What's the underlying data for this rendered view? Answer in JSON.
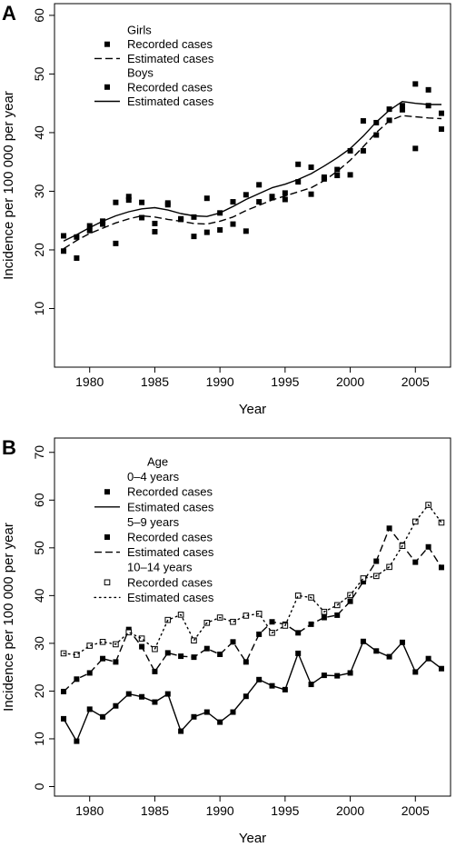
{
  "chart_data": [
    {
      "panel": "A",
      "type": "scatter",
      "xlabel": "Year",
      "ylabel": "Incidence per 100 000 per year",
      "xlim": [
        1977.3,
        2007.7
      ],
      "ylim": [
        0,
        62
      ],
      "xticks": [
        1980,
        1985,
        1990,
        1995,
        2000,
        2005
      ],
      "yticks": [
        10,
        20,
        30,
        40,
        50,
        60
      ],
      "grid": false,
      "legend_position": "top-left",
      "legend": [
        {
          "kind": "header",
          "text": "Girls"
        },
        {
          "kind": "marker",
          "text": "Recorded cases",
          "style": "filled-square"
        },
        {
          "kind": "line",
          "text": "Estimated cases",
          "style": "dashed"
        },
        {
          "kind": "header",
          "text": "Boys"
        },
        {
          "kind": "marker",
          "text": "Recorded cases",
          "style": "filled-square"
        },
        {
          "kind": "line",
          "text": "Estimated cases",
          "style": "solid"
        }
      ],
      "series": [
        {
          "legend_index": 1,
          "kind": "points",
          "style": "filled-square",
          "x": [
            1978,
            1979,
            1980,
            1981,
            1982,
            1983,
            1984,
            1985,
            1986,
            1987,
            1988,
            1989,
            1990,
            1991,
            1992,
            1993,
            1994,
            1995,
            1996,
            1997,
            1998,
            1999,
            2000,
            2001,
            2002,
            2003,
            2004,
            2005,
            2006,
            2007
          ],
          "y": [
            19.8,
            18.6,
            23.3,
            24.4,
            21.1,
            28.5,
            25.5,
            23.1,
            27.7,
            25.2,
            22.3,
            23.0,
            23.4,
            24.4,
            23.2,
            28.2,
            28.9,
            28.6,
            31.6,
            29.5,
            32.1,
            32.7,
            32.8,
            36.9,
            39.6,
            42.1,
            43.9,
            37.3,
            44.6,
            40.6
          ]
        },
        {
          "legend_index": 2,
          "kind": "line",
          "style": "dashed",
          "x": [
            1978,
            1979,
            1980,
            1981,
            1982,
            1983,
            1984,
            1985,
            1986,
            1987,
            1988,
            1989,
            1990,
            1991,
            1992,
            1993,
            1994,
            1995,
            1996,
            1997,
            1998,
            1999,
            2000,
            2001,
            2002,
            2003,
            2004,
            2005,
            2006,
            2007
          ],
          "y": [
            20.2,
            21.6,
            22.8,
            23.7,
            24.6,
            25.3,
            25.8,
            25.6,
            25.2,
            24.9,
            24.5,
            24.4,
            24.9,
            25.6,
            26.7,
            27.6,
            28.5,
            29.2,
            29.9,
            30.6,
            31.8,
            33.4,
            35.3,
            37.6,
            40.0,
            42.0,
            42.9,
            42.7,
            42.5,
            42.4
          ]
        },
        {
          "legend_index": 4,
          "kind": "points",
          "style": "filled-square",
          "x": [
            1978,
            1979,
            1980,
            1981,
            1982,
            1983,
            1984,
            1985,
            1986,
            1987,
            1988,
            1989,
            1990,
            1991,
            1992,
            1993,
            1994,
            1995,
            1996,
            1997,
            1998,
            1999,
            2000,
            2001,
            2002,
            2003,
            2004,
            2005,
            2006,
            2007
          ],
          "y": [
            22.4,
            22.2,
            24.1,
            24.9,
            28.1,
            29.1,
            28.1,
            24.5,
            28.0,
            25.3,
            25.6,
            28.8,
            26.3,
            28.2,
            29.4,
            31.1,
            29.1,
            29.7,
            34.6,
            34.1,
            32.4,
            33.7,
            36.9,
            42.0,
            41.7,
            44.0,
            44.6,
            48.3,
            47.3,
            43.3
          ]
        },
        {
          "legend_index": 5,
          "kind": "line",
          "style": "solid",
          "x": [
            1978,
            1979,
            1980,
            1981,
            1982,
            1983,
            1984,
            1985,
            1986,
            1987,
            1988,
            1989,
            1990,
            1991,
            1992,
            1993,
            1994,
            1995,
            1996,
            1997,
            1998,
            1999,
            2000,
            2001,
            2002,
            2003,
            2004,
            2005,
            2006,
            2007
          ],
          "y": [
            21.5,
            22.6,
            23.8,
            24.9,
            25.8,
            26.5,
            27.0,
            27.2,
            26.8,
            26.2,
            25.8,
            25.7,
            26.3,
            27.4,
            28.6,
            29.6,
            30.6,
            31.2,
            32.0,
            33.0,
            34.3,
            35.7,
            37.3,
            39.4,
            41.8,
            43.8,
            45.3,
            45.0,
            44.8,
            44.8
          ]
        }
      ]
    },
    {
      "panel": "B",
      "type": "scatter",
      "xlabel": "Year",
      "ylabel": "Incidence per 100 000 per year",
      "xlim": [
        1977.3,
        2007.7
      ],
      "ylim": [
        -2,
        73
      ],
      "xticks": [
        1980,
        1985,
        1990,
        1995,
        2000,
        2005
      ],
      "yticks": [
        0,
        10,
        20,
        30,
        40,
        50,
        60,
        70
      ],
      "grid": false,
      "legend_position": "top-left",
      "legend": [
        {
          "kind": "title",
          "text": "Age"
        },
        {
          "kind": "header",
          "text": "0–4 years"
        },
        {
          "kind": "marker",
          "text": "Recorded cases",
          "style": "filled-square"
        },
        {
          "kind": "line",
          "text": "Estimated cases",
          "style": "solid"
        },
        {
          "kind": "header",
          "text": "5–9 years"
        },
        {
          "kind": "marker",
          "text": "Recorded cases",
          "style": "filled-square"
        },
        {
          "kind": "line",
          "text": "Estimated cases",
          "style": "dashed"
        },
        {
          "kind": "header",
          "text": "10–14 years"
        },
        {
          "kind": "marker",
          "text": "Recorded cases",
          "style": "open-square"
        },
        {
          "kind": "line",
          "text": "Estimated cases",
          "style": "dotted"
        }
      ],
      "series": [
        {
          "legend_index": 2,
          "kind": "points",
          "style": "filled-square",
          "x": [
            1978,
            1979,
            1980,
            1981,
            1982,
            1983,
            1984,
            1985,
            1986,
            1987,
            1988,
            1989,
            1990,
            1991,
            1992,
            1993,
            1994,
            1995,
            1996,
            1997,
            1998,
            1999,
            2000,
            2001,
            2002,
            2003,
            2004,
            2005,
            2006,
            2007
          ],
          "y": [
            14.2,
            9.5,
            16.2,
            14.6,
            16.9,
            19.4,
            18.8,
            17.7,
            19.4,
            11.6,
            14.6,
            15.6,
            13.5,
            15.6,
            18.9,
            22.4,
            21.1,
            20.3,
            27.9,
            21.4,
            23.3,
            23.2,
            23.8,
            30.4,
            28.4,
            27.2,
            30.2,
            24.0,
            26.8,
            24.7
          ]
        },
        {
          "legend_index": 3,
          "kind": "line",
          "style": "solid",
          "x": [
            1978,
            1979,
            1980,
            1981,
            1982,
            1983,
            1984,
            1985,
            1986,
            1987,
            1988,
            1989,
            1990,
            1991,
            1992,
            1993,
            1994,
            1995,
            1996,
            1997,
            1998,
            1999,
            2000,
            2001,
            2002,
            2003,
            2004,
            2005,
            2006,
            2007
          ],
          "y": [
            14.2,
            9.5,
            16.2,
            14.6,
            16.9,
            19.4,
            18.8,
            17.7,
            19.4,
            11.6,
            14.6,
            15.6,
            13.5,
            15.6,
            18.9,
            22.4,
            21.1,
            20.3,
            27.9,
            21.4,
            23.3,
            23.2,
            23.8,
            30.4,
            28.4,
            27.2,
            30.2,
            24.0,
            26.8,
            24.7
          ]
        },
        {
          "legend_index": 5,
          "kind": "points",
          "style": "filled-square",
          "x": [
            1978,
            1979,
            1980,
            1981,
            1982,
            1983,
            1984,
            1985,
            1986,
            1987,
            1988,
            1989,
            1990,
            1991,
            1992,
            1993,
            1994,
            1995,
            1996,
            1997,
            1998,
            1999,
            2000,
            2001,
            2002,
            2003,
            2004,
            2005,
            2006,
            2007
          ],
          "y": [
            19.9,
            22.5,
            23.8,
            26.8,
            26.1,
            32.9,
            29.3,
            24.1,
            28.0,
            27.3,
            27.1,
            28.9,
            27.7,
            30.3,
            26.1,
            31.9,
            34.5,
            34.0,
            32.2,
            34.0,
            35.4,
            35.9,
            38.8,
            42.9,
            47.2,
            54.1,
            50.6,
            47.0,
            50.2,
            45.9
          ]
        },
        {
          "legend_index": 6,
          "kind": "line",
          "style": "dashed",
          "x": [
            1978,
            1979,
            1980,
            1981,
            1982,
            1983,
            1984,
            1985,
            1986,
            1987,
            1988,
            1989,
            1990,
            1991,
            1992,
            1993,
            1994,
            1995,
            1996,
            1997,
            1998,
            1999,
            2000,
            2001,
            2002,
            2003,
            2004,
            2005,
            2006,
            2007
          ],
          "y": [
            19.9,
            22.5,
            23.8,
            26.8,
            26.1,
            32.9,
            29.3,
            24.1,
            28.0,
            27.3,
            27.1,
            28.9,
            27.7,
            30.3,
            26.1,
            31.9,
            34.5,
            34.0,
            32.2,
            34.0,
            35.4,
            35.9,
            38.8,
            42.9,
            47.2,
            54.1,
            50.6,
            47.0,
            50.2,
            45.9
          ]
        },
        {
          "legend_index": 8,
          "kind": "points",
          "style": "open-square",
          "x": [
            1978,
            1979,
            1980,
            1981,
            1982,
            1983,
            1984,
            1985,
            1986,
            1987,
            1988,
            1989,
            1990,
            1991,
            1992,
            1993,
            1994,
            1995,
            1996,
            1997,
            1998,
            1999,
            2000,
            2001,
            2002,
            2003,
            2004,
            2005,
            2006,
            2007
          ],
          "y": [
            27.9,
            27.6,
            29.5,
            30.3,
            29.8,
            32.3,
            31.0,
            28.8,
            34.9,
            36.0,
            30.6,
            34.3,
            35.4,
            34.5,
            35.8,
            36.2,
            32.2,
            33.7,
            40.0,
            39.6,
            36.6,
            38.0,
            40.1,
            43.6,
            44.1,
            46.0,
            50.4,
            55.5,
            59.0,
            55.3
          ]
        },
        {
          "legend_index": 9,
          "kind": "line",
          "style": "dotted",
          "x": [
            1978,
            1979,
            1980,
            1981,
            1982,
            1983,
            1984,
            1985,
            1986,
            1987,
            1988,
            1989,
            1990,
            1991,
            1992,
            1993,
            1994,
            1995,
            1996,
            1997,
            1998,
            1999,
            2000,
            2001,
            2002,
            2003,
            2004,
            2005,
            2006,
            2007
          ],
          "y": [
            27.9,
            27.6,
            29.5,
            30.3,
            29.8,
            32.3,
            31.0,
            28.8,
            34.9,
            36.0,
            30.6,
            34.3,
            35.4,
            34.5,
            35.8,
            36.2,
            32.2,
            33.7,
            40.0,
            39.6,
            36.6,
            38.0,
            40.1,
            43.6,
            44.1,
            46.0,
            50.4,
            55.5,
            59.0,
            55.3
          ]
        }
      ]
    }
  ]
}
